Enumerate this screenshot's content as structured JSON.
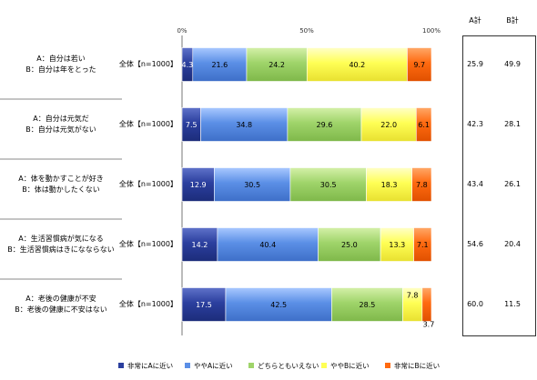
{
  "chart_data": {
    "type": "bar",
    "orientation": "horizontal",
    "stacked": true,
    "xlim": [
      0,
      100
    ],
    "x_ticks": [
      "0%",
      "50%",
      "100%"
    ],
    "grid": false,
    "legend_position": "bottom",
    "rows": [
      {
        "statement_a": "A：自分は若い",
        "statement_b": "B：自分は年をとった",
        "sample": "全体【n=1000】",
        "values": [
          4.3,
          21.6,
          24.2,
          40.2,
          9.7
        ],
        "a_total": "25.9",
        "b_total": "49.9"
      },
      {
        "statement_a": "A：自分は元気だ",
        "statement_b": "B：自分は元気がない",
        "sample": "全体【n=1000】",
        "values": [
          7.5,
          34.8,
          29.6,
          22.0,
          6.1
        ],
        "a_total": "42.3",
        "b_total": "28.1"
      },
      {
        "statement_a": "A：体を動かすことが好き",
        "statement_b": "B：体は動かしたくない",
        "sample": "全体【n=1000】",
        "values": [
          12.9,
          30.5,
          30.5,
          18.3,
          7.8
        ],
        "a_total": "43.4",
        "b_total": "26.1"
      },
      {
        "statement_a": "A：生活習慣病が気になる",
        "statement_b": "B：生活習慣病はきになならない",
        "sample": "全体【n=1000】",
        "values": [
          14.2,
          40.4,
          25.0,
          13.3,
          7.1
        ],
        "a_total": "54.6",
        "b_total": "20.4"
      },
      {
        "statement_a": "A：老後の健康が不安",
        "statement_b": "B：老後の健康に不安はない",
        "sample": "全体【n=1000】",
        "values": [
          17.5,
          42.5,
          28.5,
          7.8,
          3.7
        ],
        "a_total": "60.0",
        "b_total": "11.5"
      }
    ],
    "series": [
      {
        "name": "非常にAに近い",
        "color": "#2b3f9e"
      },
      {
        "name": "ややAに近い",
        "color": "#5b8fe6"
      },
      {
        "name": "どちらともいえない",
        "color": "#9fd46a"
      },
      {
        "name": "ややBに近い",
        "color": "#ffff55"
      },
      {
        "name": "非常にBに近い",
        "color": "#ff6a10"
      }
    ],
    "summary_headers": [
      "A計",
      "B計"
    ]
  }
}
